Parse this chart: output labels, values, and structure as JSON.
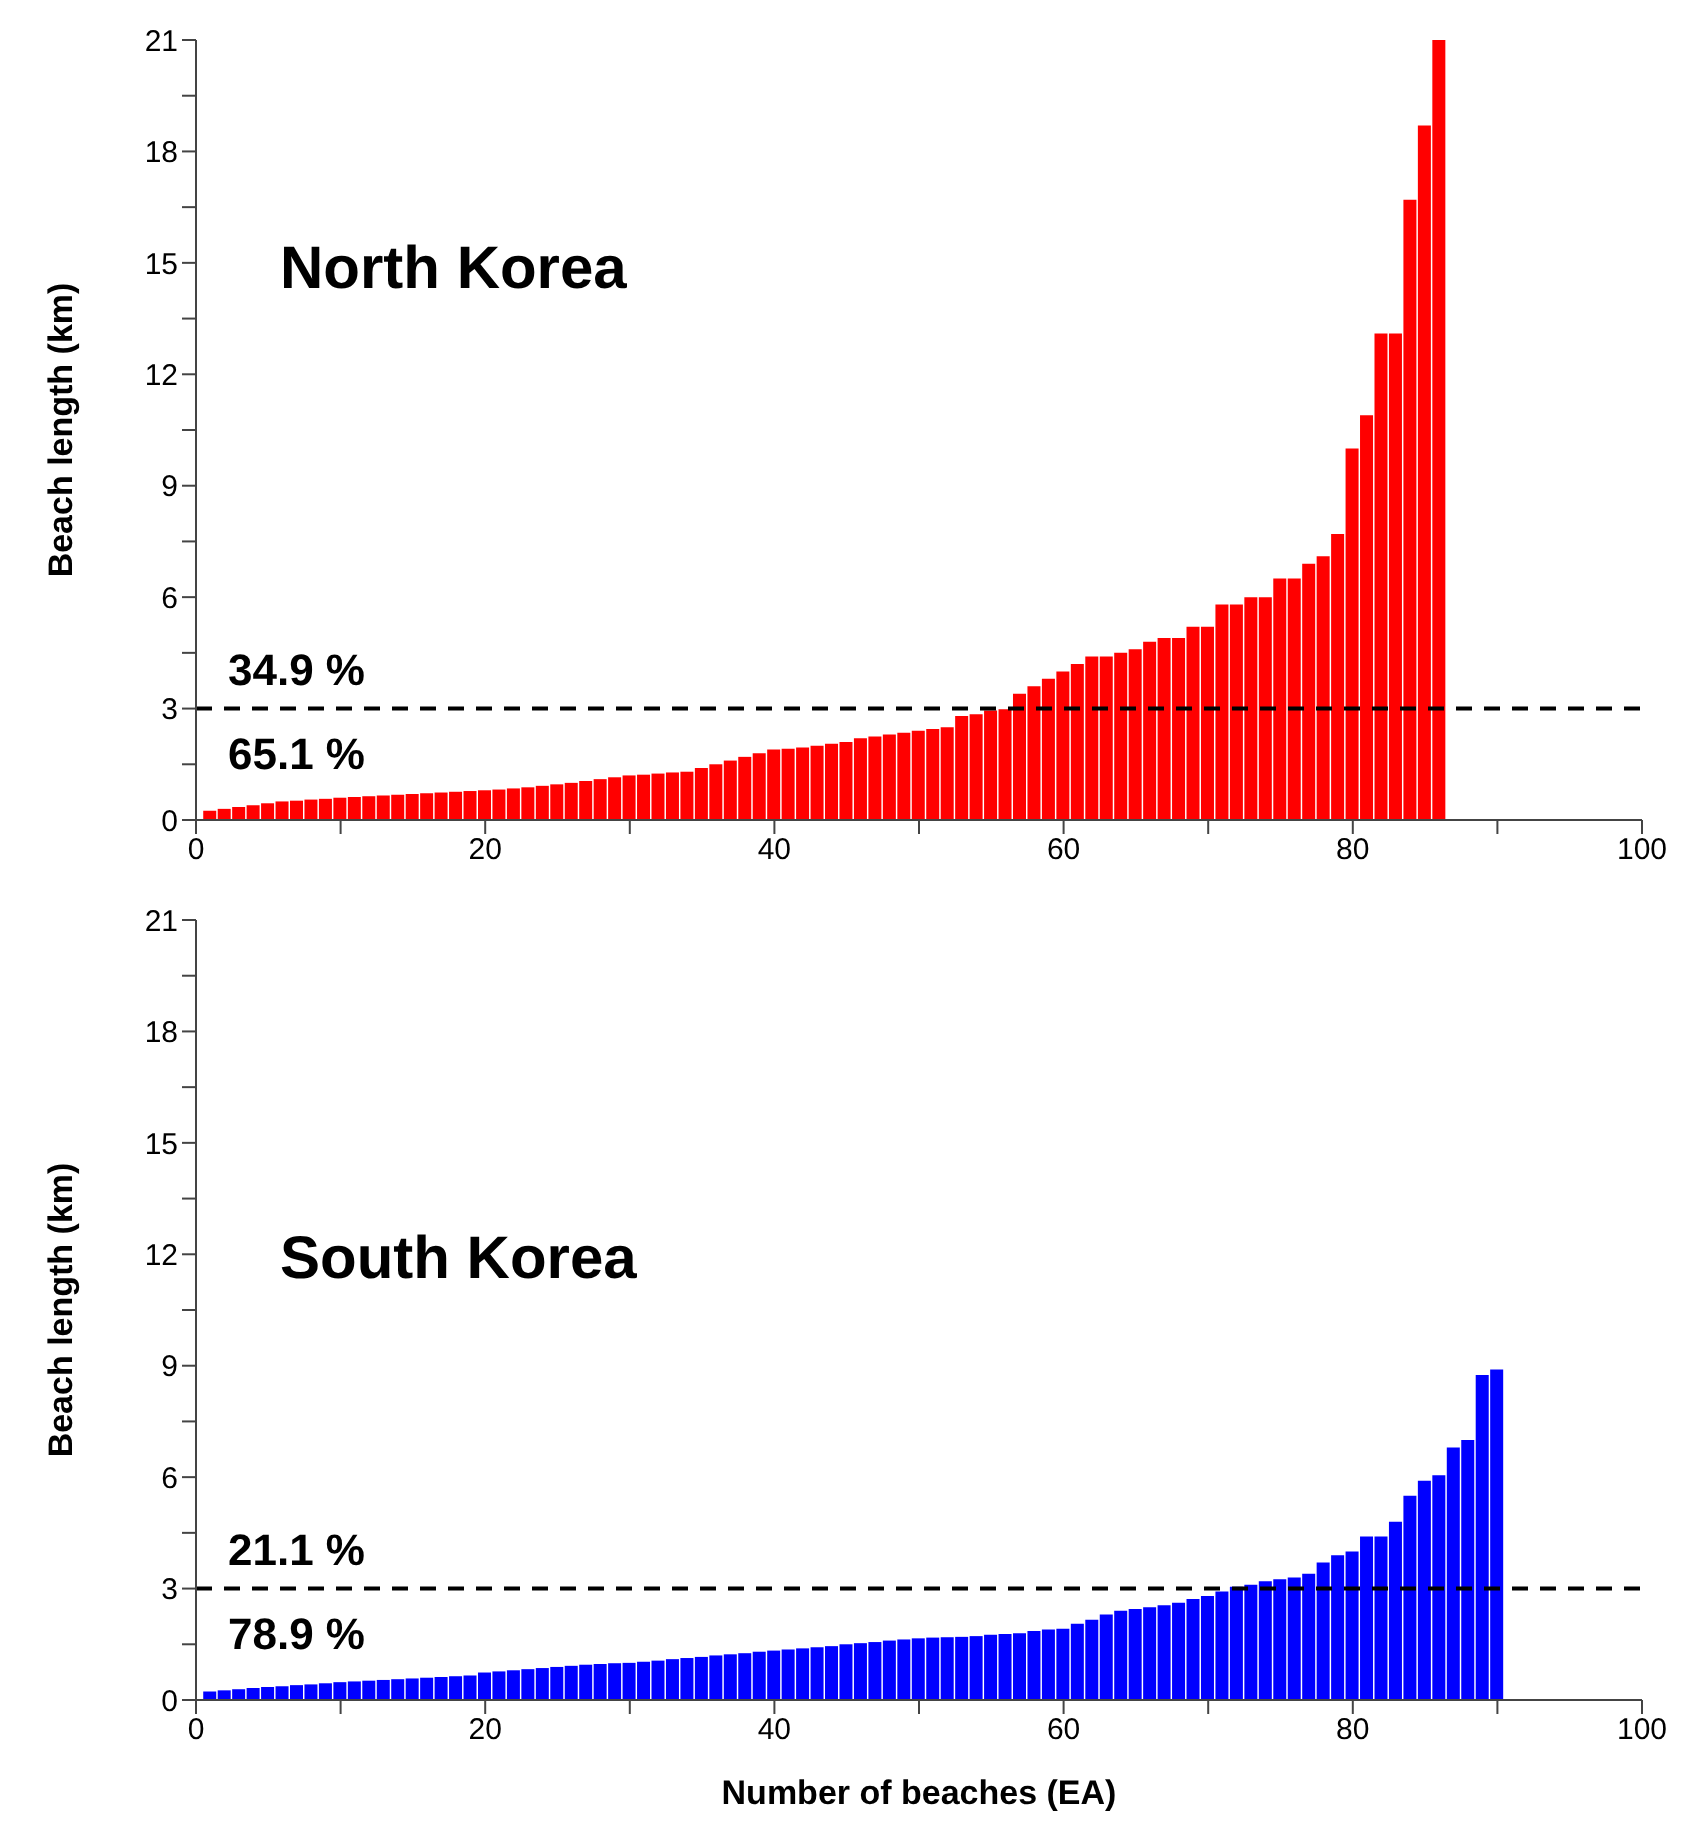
{
  "chart_data": [
    {
      "type": "bar",
      "title": "North Korea",
      "ylabel": "Beach length (km)",
      "color": "#ff0000",
      "x": [
        1,
        2,
        3,
        4,
        5,
        6,
        7,
        8,
        9,
        10,
        11,
        12,
        13,
        14,
        15,
        16,
        17,
        18,
        19,
        20,
        21,
        22,
        23,
        24,
        25,
        26,
        27,
        28,
        29,
        30,
        31,
        32,
        33,
        34,
        35,
        36,
        37,
        38,
        39,
        40,
        41,
        42,
        43,
        44,
        45,
        46,
        47,
        48,
        49,
        50,
        51,
        52,
        53,
        54,
        55,
        56,
        57,
        58,
        59,
        60,
        61,
        62,
        63,
        64,
        65,
        66,
        67,
        68,
        69,
        70,
        71,
        72,
        73,
        74,
        75,
        76,
        77,
        78,
        79,
        80,
        81,
        82,
        83,
        84,
        85,
        86
      ],
      "values": [
        0.25,
        0.3,
        0.35,
        0.4,
        0.45,
        0.5,
        0.52,
        0.55,
        0.57,
        0.6,
        0.62,
        0.64,
        0.66,
        0.68,
        0.7,
        0.72,
        0.74,
        0.76,
        0.78,
        0.8,
        0.82,
        0.85,
        0.88,
        0.92,
        0.96,
        1.0,
        1.05,
        1.1,
        1.15,
        1.2,
        1.22,
        1.25,
        1.28,
        1.3,
        1.4,
        1.5,
        1.6,
        1.7,
        1.8,
        1.9,
        1.92,
        1.95,
        2.0,
        2.05,
        2.1,
        2.2,
        2.25,
        2.3,
        2.35,
        2.4,
        2.45,
        2.5,
        2.8,
        2.85,
        2.95,
        2.98,
        3.4,
        3.6,
        3.8,
        4.0,
        4.2,
        4.4,
        4.4,
        4.5,
        4.6,
        4.8,
        4.9,
        4.9,
        5.2,
        5.2,
        5.8,
        5.8,
        6.0,
        6.0,
        6.5,
        6.5,
        6.9,
        7.1,
        7.7,
        10.0,
        10.9,
        13.1,
        13.1,
        16.7,
        18.7,
        21.0
      ],
      "xlim": [
        0,
        100
      ],
      "xticks": [
        0,
        {
          "value": 10,
          "label": null
        },
        20,
        {
          "value": 30,
          "label": null
        },
        40,
        {
          "value": 50,
          "label": null
        },
        60,
        {
          "value": 70,
          "label": null
        },
        80,
        {
          "value": 90,
          "label": null
        },
        100
      ],
      "ylim": [
        0,
        21
      ],
      "yticks": [
        0,
        {
          "value": 1.5,
          "label": null
        },
        3,
        {
          "value": 4.5,
          "label": null
        },
        6,
        {
          "value": 7.5,
          "label": null
        },
        9,
        {
          "value": 10.5,
          "label": null
        },
        12,
        {
          "value": 13.5,
          "label": null
        },
        15,
        {
          "value": 16.5,
          "label": null
        },
        18,
        {
          "value": 19.5,
          "label": null
        },
        21
      ],
      "ref_lines": [
        {
          "axis": "y",
          "value": 3,
          "line_style": "dashed",
          "color": "#000000"
        }
      ],
      "annotations": [
        "34.9 %",
        "65.1 %"
      ]
    },
    {
      "type": "bar",
      "title": "South Korea",
      "ylabel": "Beach length (km)",
      "xlabel": "Number of beaches (EA)",
      "color": "#0000ff",
      "x": [
        1,
        2,
        3,
        4,
        5,
        6,
        7,
        8,
        9,
        10,
        11,
        12,
        13,
        14,
        15,
        16,
        17,
        18,
        19,
        20,
        21,
        22,
        23,
        24,
        25,
        26,
        27,
        28,
        29,
        30,
        31,
        32,
        33,
        34,
        35,
        36,
        37,
        38,
        39,
        40,
        41,
        42,
        43,
        44,
        45,
        46,
        47,
        48,
        49,
        50,
        51,
        52,
        53,
        54,
        55,
        56,
        57,
        58,
        59,
        60,
        61,
        62,
        63,
        64,
        65,
        66,
        67,
        68,
        69,
        70,
        71,
        72,
        73,
        74,
        75,
        76,
        77,
        78,
        79,
        80,
        81,
        82,
        83,
        84,
        85,
        86,
        87,
        88,
        89,
        90
      ],
      "values": [
        0.23,
        0.26,
        0.29,
        0.32,
        0.35,
        0.37,
        0.4,
        0.42,
        0.45,
        0.48,
        0.5,
        0.52,
        0.54,
        0.56,
        0.58,
        0.6,
        0.62,
        0.64,
        0.66,
        0.74,
        0.77,
        0.8,
        0.83,
        0.86,
        0.89,
        0.92,
        0.95,
        0.97,
        0.99,
        1.0,
        1.03,
        1.06,
        1.1,
        1.13,
        1.16,
        1.2,
        1.23,
        1.26,
        1.3,
        1.33,
        1.36,
        1.39,
        1.42,
        1.45,
        1.5,
        1.53,
        1.56,
        1.6,
        1.63,
        1.66,
        1.68,
        1.69,
        1.7,
        1.72,
        1.76,
        1.78,
        1.8,
        1.86,
        1.9,
        1.92,
        2.05,
        2.16,
        2.3,
        2.4,
        2.45,
        2.5,
        2.55,
        2.62,
        2.72,
        2.8,
        2.92,
        3.05,
        3.1,
        3.2,
        3.25,
        3.3,
        3.4,
        3.7,
        3.9,
        4.0,
        4.4,
        4.4,
        4.8,
        5.5,
        5.9,
        6.05,
        6.8,
        7.0,
        8.75,
        8.9
      ],
      "xlim": [
        0,
        100
      ],
      "xticks": [
        0,
        {
          "value": 10,
          "label": null
        },
        20,
        {
          "value": 30,
          "label": null
        },
        40,
        {
          "value": 50,
          "label": null
        },
        60,
        {
          "value": 70,
          "label": null
        },
        80,
        {
          "value": 90,
          "label": null
        },
        100
      ],
      "ylim": [
        0,
        21
      ],
      "yticks": [
        0,
        {
          "value": 1.5,
          "label": null
        },
        3,
        {
          "value": 4.5,
          "label": null
        },
        6,
        {
          "value": 7.5,
          "label": null
        },
        9,
        {
          "value": 10.5,
          "label": null
        },
        12,
        {
          "value": 13.5,
          "label": null
        },
        15,
        {
          "value": 16.5,
          "label": null
        },
        18,
        {
          "value": 19.5,
          "label": null
        },
        21
      ],
      "ref_lines": [
        {
          "axis": "y",
          "value": 3,
          "line_style": "dashed",
          "color": "#000000"
        }
      ],
      "annotations": [
        "21.1 %",
        "78.9 %"
      ]
    }
  ]
}
